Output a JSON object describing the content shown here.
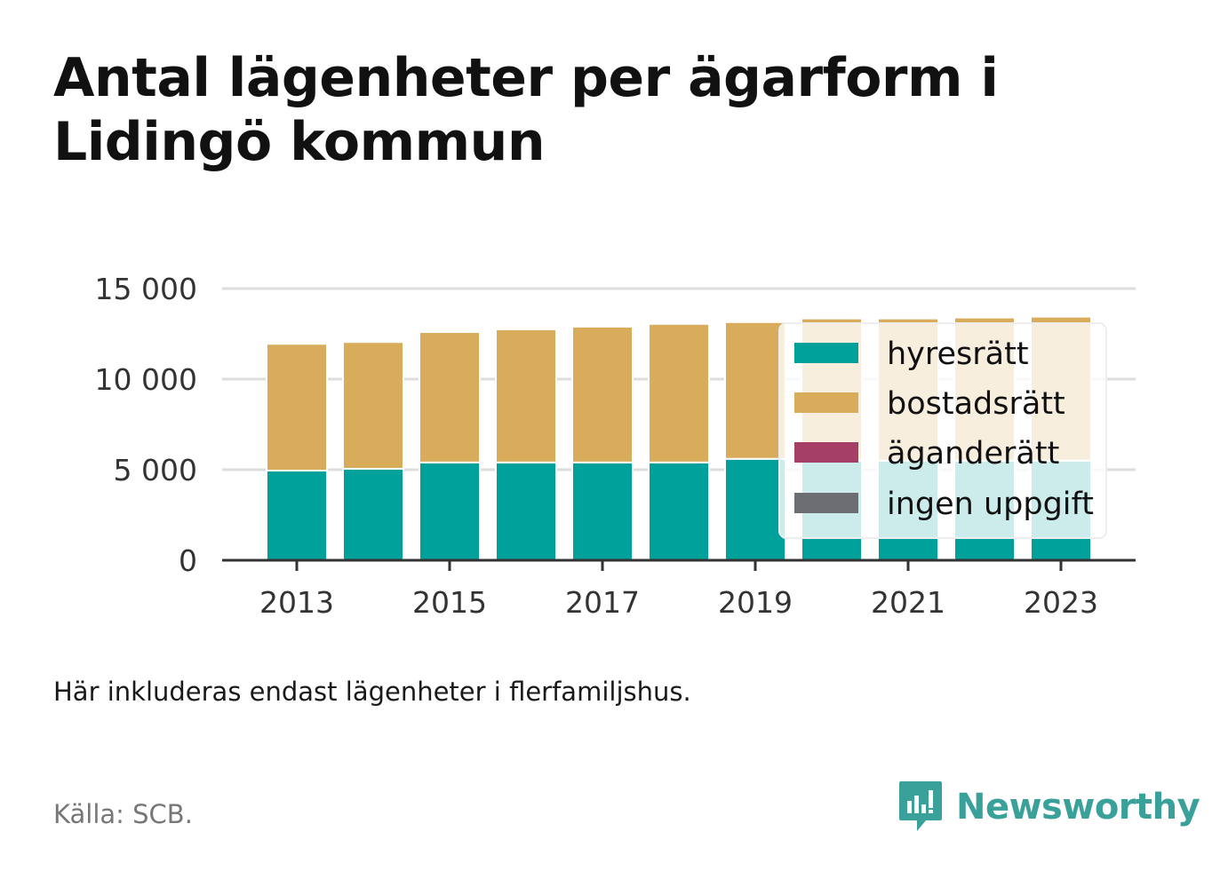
{
  "title": "Antal lägenheter per ägarform i Lidingö kommun",
  "note": "Här inkluderas endast lägenheter i flerfamiljshus.",
  "source": "Källa: SCB.",
  "brand": "Newsworthy",
  "colors": {
    "hyresratt": "#00a19a",
    "bostadsratt": "#d9ac5b",
    "aganderatt": "#a53f66",
    "ingen_uppgift": "#6d6e73",
    "grid": "#dddddd",
    "axis": "#333333",
    "brand": "#3aa09a"
  },
  "chart_data": {
    "type": "bar",
    "stacked": true,
    "categories": [
      "2013",
      "2014",
      "2015",
      "2016",
      "2017",
      "2018",
      "2019",
      "2020",
      "2021",
      "2022",
      "2023"
    ],
    "x_tick_labels": [
      "2013",
      "2015",
      "2017",
      "2019",
      "2021",
      "2023"
    ],
    "y_ticks": [
      0,
      5000,
      10000,
      15000
    ],
    "y_tick_labels": [
      "0",
      "5 000",
      "10 000",
      "15 000"
    ],
    "ylim": [
      0,
      15000
    ],
    "grid": true,
    "legend_position": "right",
    "series": [
      {
        "name": "hyresrätt",
        "color_key": "hyresratt",
        "values": [
          4950,
          5050,
          5400,
          5400,
          5400,
          5400,
          5600,
          5500,
          5500,
          5500,
          5500
        ]
      },
      {
        "name": "bostadsrätt",
        "color_key": "bostadsratt",
        "values": [
          7000,
          7000,
          7200,
          7350,
          7500,
          7650,
          7550,
          7850,
          7850,
          7900,
          7950
        ]
      },
      {
        "name": "äganderätt",
        "color_key": "aganderatt",
        "values": [
          0,
          0,
          0,
          0,
          0,
          0,
          0,
          0,
          0,
          0,
          0
        ]
      },
      {
        "name": "ingen uppgift",
        "color_key": "ingen_uppgift",
        "values": [
          0,
          0,
          0,
          0,
          0,
          0,
          0,
          0,
          0,
          0,
          0
        ]
      }
    ]
  }
}
